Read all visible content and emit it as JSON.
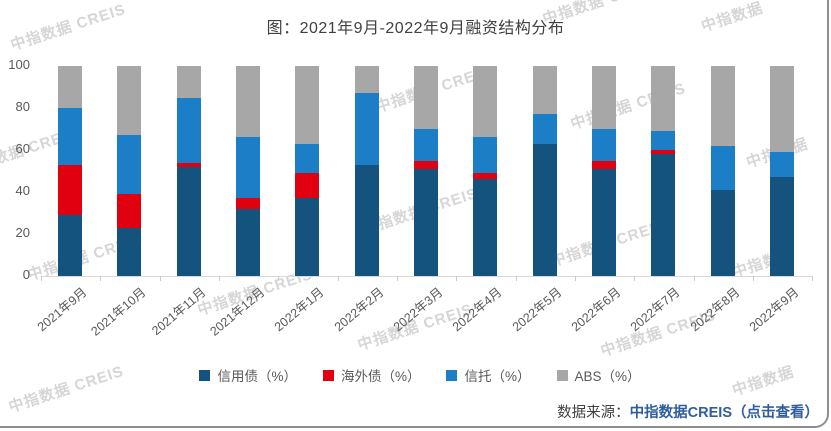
{
  "watermark": {
    "full": "中指数据 CREIS",
    "short": "中指数据"
  },
  "source": {
    "label": "数据来源：",
    "link": "中指数据CREIS（点击查看）",
    "link_color": "#2f5d9e"
  },
  "chart_data": {
    "type": "bar",
    "stacked": true,
    "title": "图：2021年9月-2022年9月融资结构分布",
    "unit": "%",
    "grid": false,
    "legend_position": "bottom",
    "categories": [
      "2021年9月",
      "2021年10月",
      "2021年11月",
      "2021年12月",
      "2022年1月",
      "2022年2月",
      "2022年3月",
      "2022年4月",
      "2022年5月",
      "2022年6月",
      "2022年7月",
      "2022年8月",
      "2022年9月"
    ],
    "series": [
      {
        "key": "credit-bond",
        "name": "信用债",
        "legend": "信用债（%）",
        "color": "#15537f",
        "values": [
          29,
          23,
          52,
          32,
          37,
          53,
          51,
          46,
          63,
          51,
          58,
          41,
          47
        ]
      },
      {
        "key": "overseas-bond",
        "name": "海外债",
        "legend": "海外债（%）",
        "color": "#e1000f",
        "values": [
          24,
          16,
          2,
          5,
          12,
          0,
          4,
          3,
          0,
          4,
          2,
          0,
          0
        ]
      },
      {
        "key": "trust",
        "name": "信托",
        "legend": "信托（%）",
        "color": "#1b7ec6",
        "values": [
          27,
          28,
          31,
          29,
          14,
          34,
          15,
          17,
          14,
          15,
          9,
          21,
          12
        ]
      },
      {
        "key": "abs",
        "name": "ABS",
        "legend": "ABS（%）",
        "color": "#a7a7a7",
        "values": [
          20,
          33,
          15,
          34,
          37,
          13,
          30,
          34,
          23,
          30,
          31,
          38,
          41
        ]
      }
    ],
    "y_axis": {
      "min": 0,
      "max": 100,
      "ticks": [
        0,
        20,
        40,
        60,
        80,
        100
      ]
    }
  }
}
